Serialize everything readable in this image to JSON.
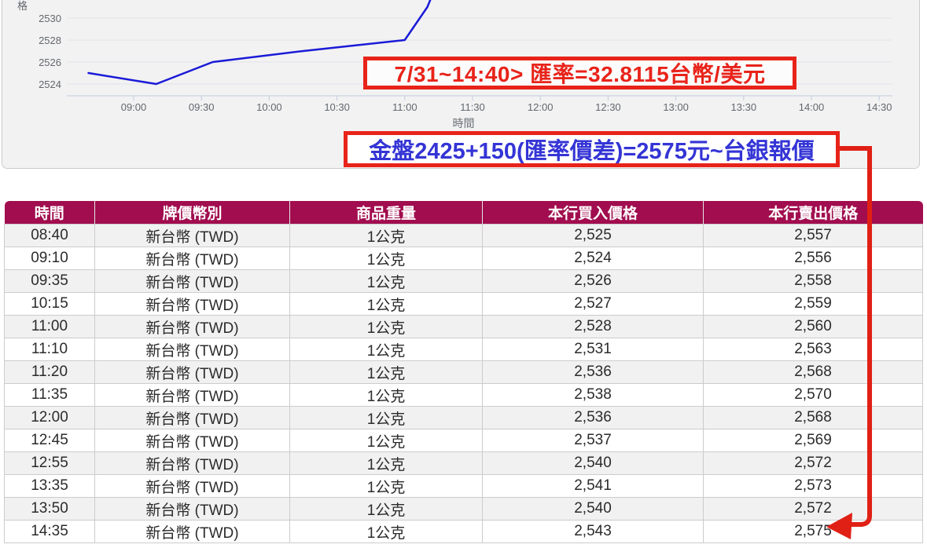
{
  "chart": {
    "y_axis_title_partial": "格",
    "x_axis_title": "時間",
    "annotation_rate": "7/31~14:40> 匯率=32.8115台幣/美元",
    "annotation_quote": "金盤2425+150(匯率價差)=2575元~台銀報價",
    "line_color": "#1A1AD8",
    "accent_red": "#E8231A",
    "accent_blue": "#3434D6"
  },
  "chart_data": {
    "type": "line",
    "title": "",
    "xlabel": "時間",
    "ylabel": "價格",
    "grid": true,
    "x_ticks": [
      "09:00",
      "09:30",
      "10:00",
      "10:30",
      "11:00",
      "11:30",
      "12:00",
      "12:30",
      "13:00",
      "13:30",
      "14:00",
      "14:30"
    ],
    "y_ticks": [
      2524,
      2526,
      2528,
      2530
    ],
    "ylim_visible": [
      2522.9,
      2530.6
    ],
    "series": [
      {
        "name": "本行買入價格",
        "x": [
          "08:40",
          "09:10",
          "09:35",
          "10:15",
          "11:00",
          "11:10",
          "11:20",
          "11:35",
          "12:00",
          "12:45",
          "12:55",
          "13:35",
          "13:50",
          "14:35"
        ],
        "values": [
          2525,
          2524,
          2526,
          2527,
          2528,
          2531,
          2536,
          2538,
          2536,
          2537,
          2540,
          2541,
          2540,
          2543
        ]
      }
    ]
  },
  "table": {
    "header_bg": "#A10D4F",
    "headers": [
      "時間",
      "牌價幣別",
      "商品重量",
      "本行買入價格",
      "本行賣出價格"
    ],
    "rows": [
      [
        "08:40",
        "新台幣 (TWD)",
        "1公克",
        "2,525",
        "2,557"
      ],
      [
        "09:10",
        "新台幣 (TWD)",
        "1公克",
        "2,524",
        "2,556"
      ],
      [
        "09:35",
        "新台幣 (TWD)",
        "1公克",
        "2,526",
        "2,558"
      ],
      [
        "10:15",
        "新台幣 (TWD)",
        "1公克",
        "2,527",
        "2,559"
      ],
      [
        "11:00",
        "新台幣 (TWD)",
        "1公克",
        "2,528",
        "2,560"
      ],
      [
        "11:10",
        "新台幣 (TWD)",
        "1公克",
        "2,531",
        "2,563"
      ],
      [
        "11:20",
        "新台幣 (TWD)",
        "1公克",
        "2,536",
        "2,568"
      ],
      [
        "11:35",
        "新台幣 (TWD)",
        "1公克",
        "2,538",
        "2,570"
      ],
      [
        "12:00",
        "新台幣 (TWD)",
        "1公克",
        "2,536",
        "2,568"
      ],
      [
        "12:45",
        "新台幣 (TWD)",
        "1公克",
        "2,537",
        "2,569"
      ],
      [
        "12:55",
        "新台幣 (TWD)",
        "1公克",
        "2,540",
        "2,572"
      ],
      [
        "13:35",
        "新台幣 (TWD)",
        "1公克",
        "2,541",
        "2,573"
      ],
      [
        "13:50",
        "新台幣 (TWD)",
        "1公克",
        "2,540",
        "2,572"
      ],
      [
        "14:35",
        "新台幣 (TWD)",
        "1公克",
        "2,543",
        "2,575"
      ]
    ]
  }
}
